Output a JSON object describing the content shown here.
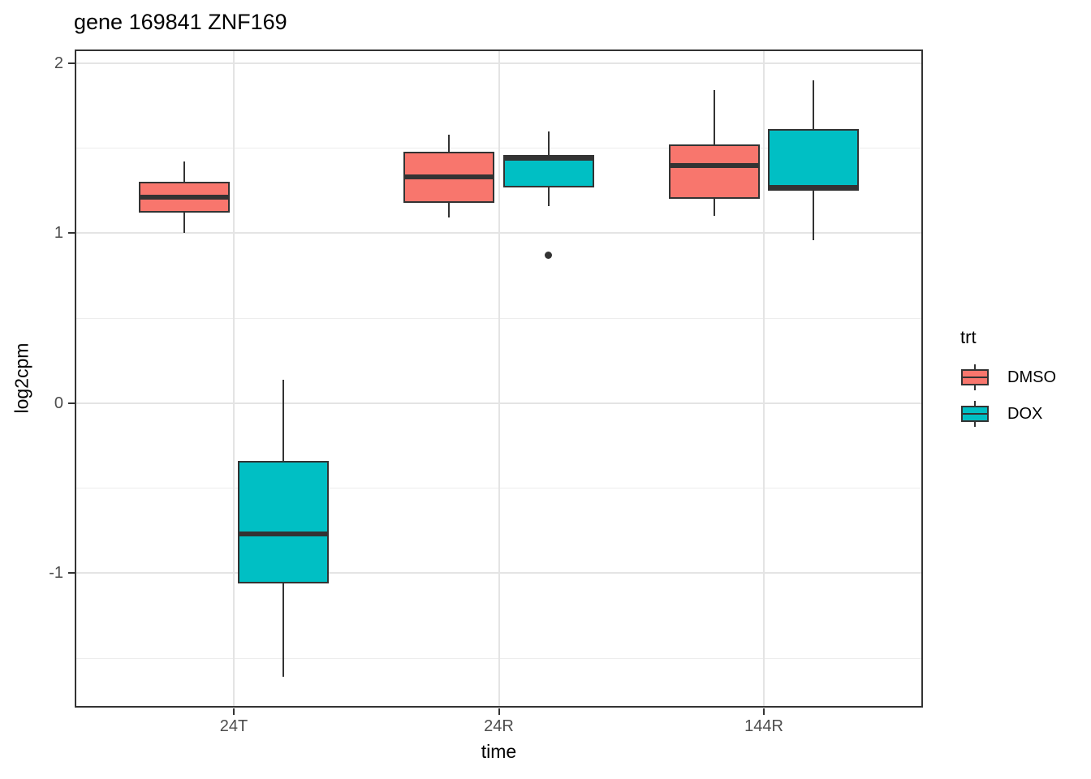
{
  "chart_data": {
    "type": "boxplot",
    "title": "gene 169841 ZNF169",
    "xlabel": "time",
    "ylabel": "log2cpm",
    "categories": [
      "24T",
      "24R",
      "144R"
    ],
    "legend_title": "trt",
    "legend_position": "right",
    "grid": true,
    "ylim": [
      -1.79,
      2.08
    ],
    "x_range": [
      0.4,
      3.6
    ],
    "y_ticks": [
      {
        "label": "2",
        "value": 2
      },
      {
        "label": "1",
        "value": 1
      },
      {
        "label": "0",
        "value": 0
      },
      {
        "label": "-1",
        "value": -1
      }
    ],
    "y_minor_gridlines": [
      1.5,
      0.5,
      -0.5,
      -1.5
    ],
    "series": [
      {
        "name": "DMSO",
        "color": "#F8766D",
        "boxes": [
          {
            "category": "24T",
            "min": 1.0,
            "q1": 1.12,
            "median": 1.21,
            "q3": 1.3,
            "max": 1.42,
            "outliers": []
          },
          {
            "category": "24R",
            "min": 1.09,
            "q1": 1.18,
            "median": 1.33,
            "q3": 1.48,
            "max": 1.58,
            "outliers": []
          },
          {
            "category": "144R",
            "min": 1.1,
            "q1": 1.2,
            "median": 1.4,
            "q3": 1.52,
            "max": 1.84,
            "outliers": []
          }
        ]
      },
      {
        "name": "DOX",
        "color": "#00BFC4",
        "boxes": [
          {
            "category": "24T",
            "min": -1.61,
            "q1": -1.06,
            "median": -0.77,
            "q3": -0.34,
            "max": 0.14,
            "outliers": []
          },
          {
            "category": "24R",
            "min": 1.16,
            "q1": 1.27,
            "median": 1.44,
            "q3": 1.46,
            "max": 1.6,
            "outliers": [
              0.87
            ]
          },
          {
            "category": "144R",
            "min": 0.96,
            "q1": 1.25,
            "median": 1.27,
            "q3": 1.61,
            "max": 1.9,
            "outliers": []
          }
        ]
      }
    ],
    "style": {
      "box_line_color": "#333333",
      "grid_major_color": "#E4E4E4",
      "grid_minor_color": "#EDEDED",
      "axis_text_color": "#4D4D4D",
      "panel_border_color": "#333333",
      "background": "#FFFFFF"
    }
  }
}
